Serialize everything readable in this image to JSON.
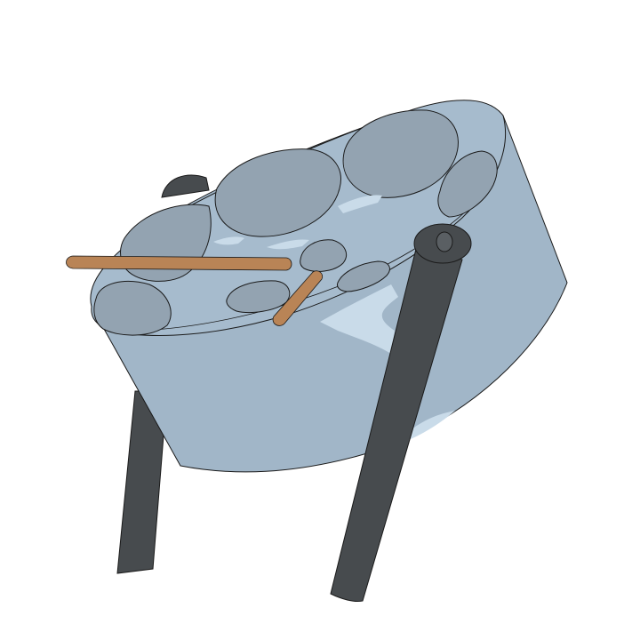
{
  "illustration": {
    "subject": "steelpan-drum",
    "colors": {
      "background": "#ffffff",
      "drum_body": "#a1b6c8",
      "drum_rim": "#a6bbcd",
      "note_pads": "#93a3b1",
      "highlights": "#c9dbe9",
      "stand_legs": "#474b4e",
      "mallets": "#b98456",
      "outline": "#1a1a1a"
    },
    "elements": [
      "drum-body",
      "playing-surface",
      "note-pads",
      "highlights",
      "stand-legs",
      "mallets"
    ]
  }
}
